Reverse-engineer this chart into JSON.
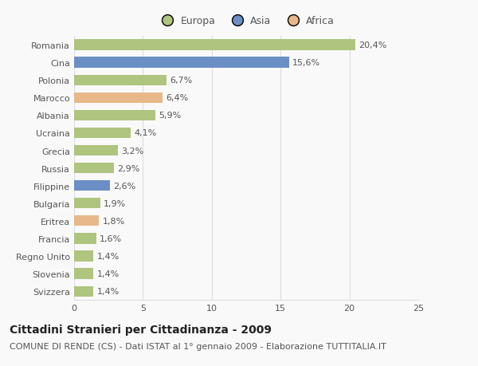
{
  "categories": [
    "Romania",
    "Cina",
    "Polonia",
    "Marocco",
    "Albania",
    "Ucraina",
    "Grecia",
    "Russia",
    "Filippine",
    "Bulgaria",
    "Eritrea",
    "Francia",
    "Regno Unito",
    "Slovenia",
    "Svizzera"
  ],
  "values": [
    20.4,
    15.6,
    6.7,
    6.4,
    5.9,
    4.1,
    3.2,
    2.9,
    2.6,
    1.9,
    1.8,
    1.6,
    1.4,
    1.4,
    1.4
  ],
  "labels": [
    "20,4%",
    "15,6%",
    "6,7%",
    "6,4%",
    "5,9%",
    "4,1%",
    "3,2%",
    "2,9%",
    "2,6%",
    "1,9%",
    "1,8%",
    "1,6%",
    "1,4%",
    "1,4%",
    "1,4%"
  ],
  "continents": [
    "Europa",
    "Asia",
    "Europa",
    "Africa",
    "Europa",
    "Europa",
    "Europa",
    "Europa",
    "Asia",
    "Europa",
    "Africa",
    "Europa",
    "Europa",
    "Europa",
    "Europa"
  ],
  "colors": {
    "Europa": "#aec47f",
    "Asia": "#6b8fc4",
    "Africa": "#e8b88a"
  },
  "xlim": [
    0,
    25
  ],
  "xticks": [
    0,
    5,
    10,
    15,
    20,
    25
  ],
  "title": "Cittadini Stranieri per Cittadinanza - 2009",
  "subtitle": "COMUNE DI RENDE (CS) - Dati ISTAT al 1° gennaio 2009 - Elaborazione TUTTITALIA.IT",
  "background_color": "#f9f9f9",
  "grid_color": "#dddddd",
  "bar_height": 0.6,
  "title_fontsize": 10,
  "subtitle_fontsize": 8,
  "label_fontsize": 8,
  "tick_fontsize": 8
}
